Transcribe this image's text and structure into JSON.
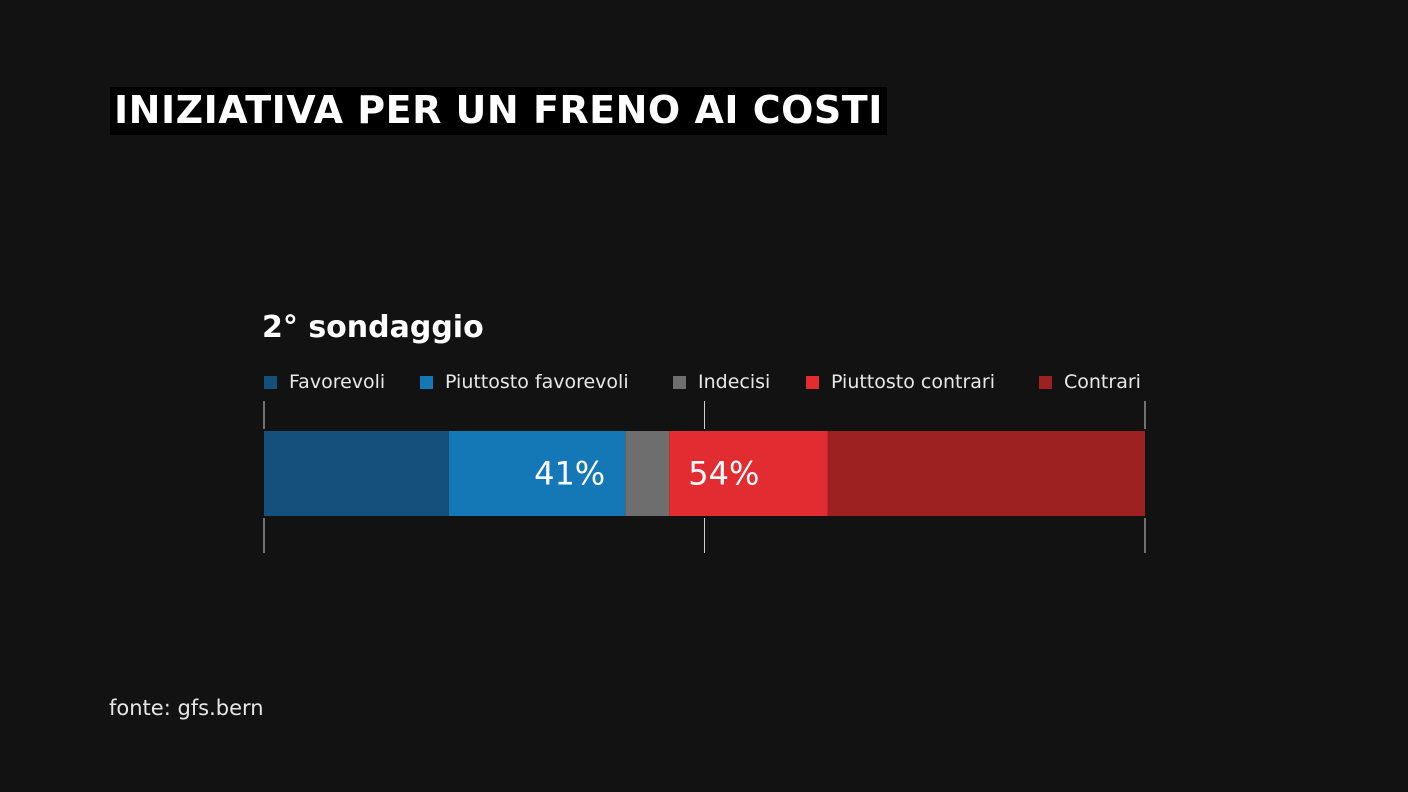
{
  "title": "INIZIATIVA PER UN FRENO AI COSTI",
  "source": "fonte: gfs.bern",
  "chart_data": {
    "type": "bar",
    "orientation": "horizontal-stacked",
    "title": "2° sondaggio",
    "categories": [
      "2° sondaggio"
    ],
    "series": [
      {
        "name": "Favorevoli",
        "values": [
          21
        ],
        "color": "#154f7c"
      },
      {
        "name": "Piuttosto favorevoli",
        "values": [
          20
        ],
        "color": "#1477b6"
      },
      {
        "name": "Indecisi",
        "values": [
          5
        ],
        "color": "#6e6e6e"
      },
      {
        "name": "Piuttosto contrari",
        "values": [
          18
        ],
        "color": "#e32c31"
      },
      {
        "name": "Contrari",
        "values": [
          36
        ],
        "color": "#9e2121"
      }
    ],
    "labels": [
      {
        "text": "41%",
        "group": "favorevoli"
      },
      {
        "text": "54%",
        "group": "contrari"
      }
    ],
    "xlim": [
      0,
      100
    ],
    "reference_ticks": [
      0,
      50,
      100
    ],
    "legend": "top",
    "grid": false
  }
}
